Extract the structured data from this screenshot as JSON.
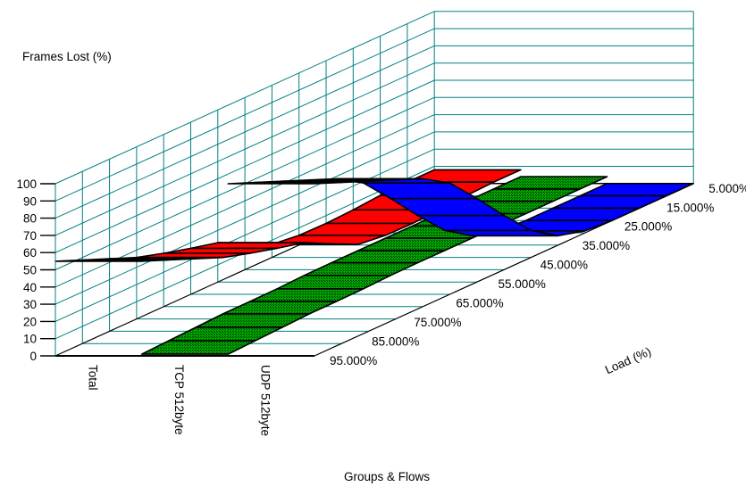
{
  "chart_data": {
    "type": "3d-ribbon",
    "title": "",
    "ylabel": "Frames Lost (%)",
    "xlabel": "Groups & Flows",
    "depth_label": "Load (%)",
    "ylim": [
      0,
      100
    ],
    "y_ticks": [
      0,
      10,
      20,
      30,
      40,
      50,
      60,
      70,
      80,
      90,
      100
    ],
    "loads_percent": [
      5,
      15,
      25,
      35,
      45,
      55,
      65,
      75,
      85,
      95
    ],
    "load_tick_labels": [
      "5.000%",
      "15.000%",
      "25.000%",
      "35.000%",
      "45.000%",
      "55.000%",
      "65.000%",
      "75.000%",
      "85.000%",
      "95.000%"
    ],
    "front_row_load_label": "95.000%",
    "categories": [
      "Total",
      "TCP 512byte",
      "UDP 512byte"
    ],
    "series": [
      {
        "name": "Total",
        "color": "#ff0000",
        "dithered": false,
        "values": [
          8,
          8,
          6,
          5,
          8,
          22,
          28,
          35,
          45,
          55
        ]
      },
      {
        "name": "TCP 512byte",
        "color": "#00a000",
        "dithered": true,
        "values": [
          4,
          4,
          4,
          4,
          4,
          4,
          3,
          3,
          2,
          1
        ]
      },
      {
        "name": "UDP 512byte",
        "color": "#0000ff",
        "dithered": false,
        "values": [
          0,
          0,
          0,
          2,
          18,
          45,
          70,
          80,
          90,
          100
        ]
      }
    ],
    "grid_color": "#008080",
    "edge_color": "#000000",
    "background": "#ffffff",
    "legend_position": "none"
  }
}
